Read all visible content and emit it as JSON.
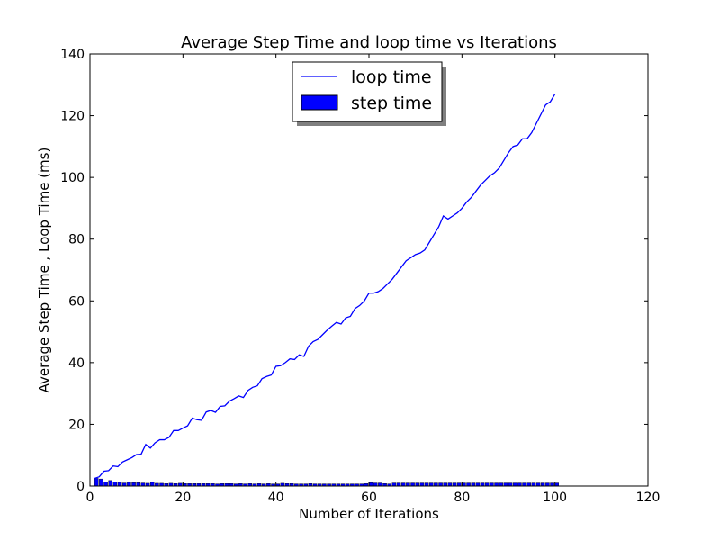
{
  "chart_data": {
    "type": "bar+line",
    "title": "Average Step Time  and loop time vs Iterations",
    "xlabel": "Number of Iterations",
    "ylabel": "Average Step Time , Loop Time  (ms)",
    "xlim": [
      0,
      120
    ],
    "ylim": [
      0,
      140
    ],
    "xticks": [
      0,
      20,
      40,
      60,
      80,
      100,
      120
    ],
    "yticks": [
      0,
      20,
      40,
      60,
      80,
      100,
      120,
      140
    ],
    "grid": false,
    "legend_position": "top-center",
    "series": [
      {
        "name": "loop time",
        "kind": "line",
        "color": "#0000ff",
        "x": [
          1,
          2,
          3,
          4,
          5,
          6,
          7,
          8,
          9,
          10,
          11,
          12,
          13,
          14,
          15,
          16,
          17,
          18,
          19,
          20,
          21,
          22,
          23,
          24,
          25,
          26,
          27,
          28,
          29,
          30,
          31,
          32,
          33,
          34,
          35,
          36,
          37,
          38,
          39,
          40,
          41,
          42,
          43,
          44,
          45,
          46,
          47,
          48,
          49,
          50,
          51,
          52,
          53,
          54,
          55,
          56,
          57,
          58,
          59,
          60,
          61,
          62,
          63,
          64,
          65,
          66,
          67,
          68,
          69,
          70,
          71,
          72,
          73,
          74,
          75,
          76,
          77,
          78,
          79,
          80,
          81,
          82,
          83,
          84,
          85,
          86,
          87,
          88,
          89,
          90,
          91,
          92,
          93,
          94,
          95,
          96,
          97,
          98,
          99,
          100
        ],
        "values": [
          2.5,
          3.0,
          4.8,
          5.0,
          6.5,
          6.3,
          7.8,
          8.5,
          9.2,
          10.2,
          10.3,
          13.5,
          12.3,
          14.0,
          15.0,
          15.0,
          15.8,
          18.0,
          18.0,
          18.8,
          19.5,
          22.0,
          21.5,
          21.3,
          24.0,
          24.5,
          23.9,
          25.8,
          26.0,
          27.5,
          28.3,
          29.2,
          28.7,
          31.0,
          32.0,
          32.5,
          34.8,
          35.5,
          36.0,
          38.8,
          39.0,
          40.0,
          41.2,
          41.0,
          42.5,
          42.0,
          45.3,
          46.8,
          47.5,
          49.0,
          50.5,
          51.8,
          53.0,
          52.5,
          54.5,
          55.0,
          57.5,
          58.5,
          60.0,
          62.5,
          62.5,
          63.0,
          64.0,
          65.5,
          67.0,
          69.0,
          71.0,
          73.0,
          74.0,
          75.0,
          75.5,
          76.5,
          79.0,
          81.5,
          84.0,
          87.5,
          86.5,
          87.5,
          88.5,
          90.0,
          92.0,
          93.5,
          95.5,
          97.5,
          99.0,
          100.5,
          101.5,
          103.0,
          105.5,
          108.0,
          110.0,
          110.5,
          112.5,
          112.5,
          114.5,
          117.5,
          120.5,
          123.5,
          124.5,
          127.0
        ]
      },
      {
        "name": "step time",
        "kind": "bar",
        "color": "#0000ff",
        "x": [
          1,
          2,
          3,
          4,
          5,
          6,
          7,
          8,
          9,
          10,
          11,
          12,
          13,
          14,
          15,
          16,
          17,
          18,
          19,
          20,
          21,
          22,
          23,
          24,
          25,
          26,
          27,
          28,
          29,
          30,
          31,
          32,
          33,
          34,
          35,
          36,
          37,
          38,
          39,
          40,
          41,
          42,
          43,
          44,
          45,
          46,
          47,
          48,
          49,
          50,
          51,
          52,
          53,
          54,
          55,
          56,
          57,
          58,
          59,
          60,
          61,
          62,
          63,
          64,
          65,
          66,
          67,
          68,
          69,
          70,
          71,
          72,
          73,
          74,
          75,
          76,
          77,
          78,
          79,
          80,
          81,
          82,
          83,
          84,
          85,
          86,
          87,
          88,
          89,
          90,
          91,
          92,
          93,
          94,
          95,
          96,
          97,
          98,
          99,
          100
        ],
        "values": [
          2.5,
          2.3,
          1.3,
          1.8,
          1.3,
          1.2,
          1.0,
          1.2,
          1.1,
          1.1,
          1.0,
          0.9,
          1.2,
          0.9,
          0.9,
          0.8,
          0.9,
          0.8,
          0.9,
          0.8,
          0.8,
          0.8,
          0.8,
          0.8,
          0.8,
          0.8,
          0.7,
          0.8,
          0.8,
          0.8,
          0.7,
          0.8,
          0.7,
          0.8,
          0.7,
          0.8,
          0.7,
          0.8,
          0.7,
          0.7,
          0.9,
          0.8,
          0.8,
          0.7,
          0.7,
          0.7,
          0.8,
          0.7,
          0.7,
          0.7,
          0.7,
          0.7,
          0.7,
          0.7,
          0.7,
          0.7,
          0.7,
          0.7,
          0.8,
          1.1,
          1.0,
          1.0,
          0.8,
          0.7,
          1.0,
          1.0,
          1.0,
          1.0,
          1.0,
          1.0,
          1.0,
          1.0,
          1.0,
          1.0,
          1.0,
          1.0,
          1.0,
          1.0,
          1.0,
          1.0,
          1.0,
          1.0,
          1.0,
          1.0,
          1.0,
          1.0,
          1.0,
          1.0,
          1.0,
          1.0,
          1.0,
          1.0,
          1.0,
          1.0,
          1.0,
          1.0,
          1.0,
          1.0,
          1.0,
          1.0
        ]
      }
    ]
  }
}
